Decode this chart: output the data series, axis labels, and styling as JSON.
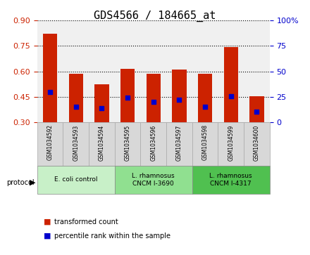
{
  "title": "GDS4566 / 184665_at",
  "samples": [
    "GSM1034592",
    "GSM1034593",
    "GSM1034594",
    "GSM1034595",
    "GSM1034596",
    "GSM1034597",
    "GSM1034598",
    "GSM1034599",
    "GSM1034600"
  ],
  "transformed_counts": [
    0.82,
    0.585,
    0.525,
    0.615,
    0.585,
    0.61,
    0.585,
    0.745,
    0.455
  ],
  "percentile_ranks": [
    0.48,
    0.39,
    0.385,
    0.445,
    0.42,
    0.435,
    0.39,
    0.455,
    0.365
  ],
  "bar_bottom": 0.3,
  "ylim": [
    0.3,
    0.9
  ],
  "y_ticks": [
    0.3,
    0.45,
    0.6,
    0.75,
    0.9
  ],
  "right_ylim": [
    0,
    100
  ],
  "right_yticks": [
    0,
    25,
    50,
    75,
    100
  ],
  "right_yticklabels": [
    "0",
    "25",
    "50",
    "75",
    "100%"
  ],
  "bar_color": "#cc2200",
  "percentile_color": "#0000cc",
  "protocol_groups": [
    {
      "label": "E. coli control",
      "start": 0,
      "end": 3,
      "color": "#c8f0c8"
    },
    {
      "label": "L. rhamnosus\nCNCM I-3690",
      "start": 3,
      "end": 6,
      "color": "#90e090"
    },
    {
      "label": "L. rhamnosus\nCNCM I-4317",
      "start": 6,
      "end": 9,
      "color": "#50c050"
    }
  ],
  "legend_items": [
    {
      "label": "transformed count",
      "color": "#cc2200"
    },
    {
      "label": "percentile rank within the sample",
      "color": "#0000cc"
    }
  ],
  "protocol_label": "protocol",
  "title_fontsize": 11,
  "axis_label_color_left": "#cc2200",
  "axis_label_color_right": "#0000cc",
  "grid_color": "#000000",
  "background_color": "#ffffff"
}
